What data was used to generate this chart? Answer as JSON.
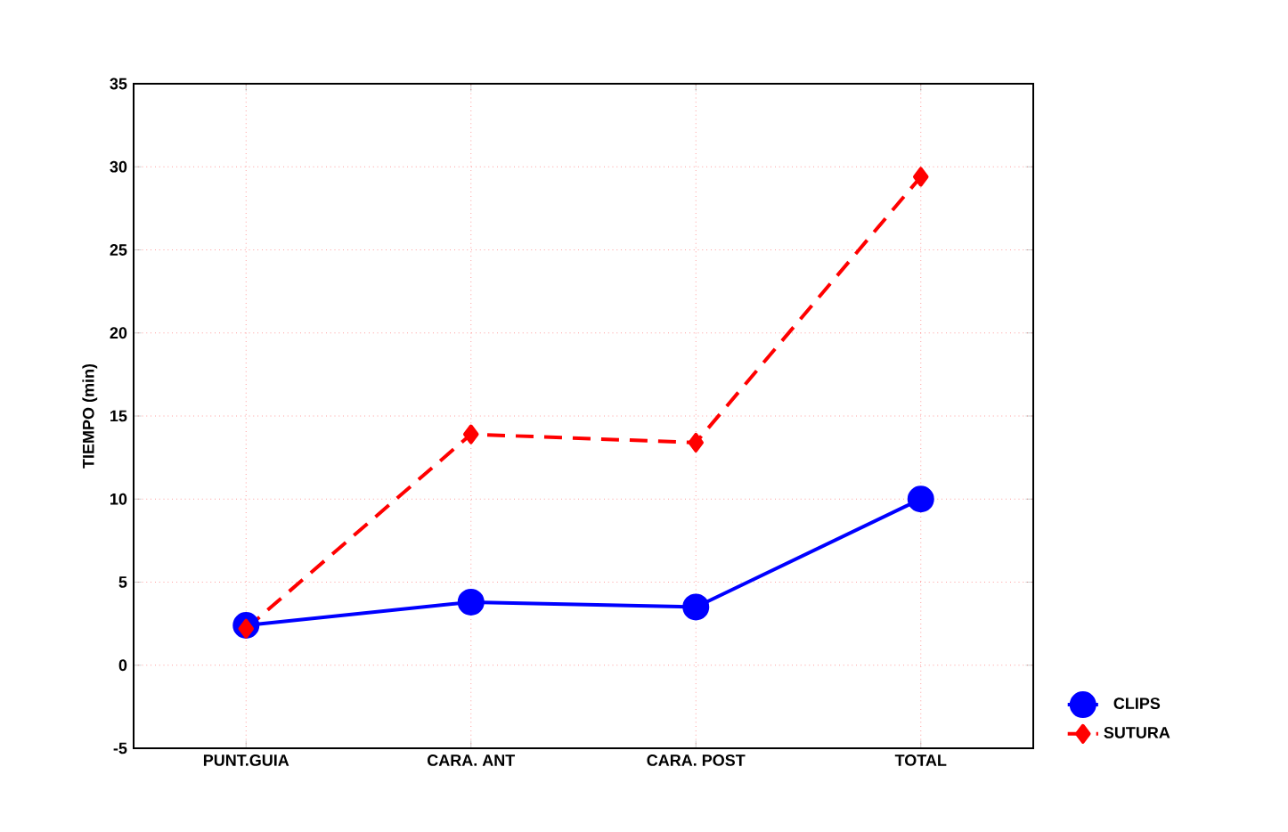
{
  "chart_data": {
    "type": "line",
    "ylabel": "TIEMPO (min)",
    "categories": [
      "PUNT.GUIA",
      "CARA. ANT",
      "CARA. POST",
      "TOTAL"
    ],
    "series": [
      {
        "name": "CLIPS",
        "color": "#0000ff",
        "values": [
          2.4,
          3.8,
          3.5,
          10.0
        ],
        "marker": "circle",
        "line_style": "solid"
      },
      {
        "name": "SUTURA",
        "color": "#ff0000",
        "values": [
          2.2,
          13.9,
          13.4,
          29.4
        ],
        "marker": "diamond",
        "line_style": "dashed"
      }
    ],
    "ylim": [
      -5,
      35
    ],
    "yticks": [
      -5,
      0,
      5,
      10,
      15,
      20,
      25,
      30,
      35
    ],
    "grid": true,
    "legend": "bottom right"
  }
}
